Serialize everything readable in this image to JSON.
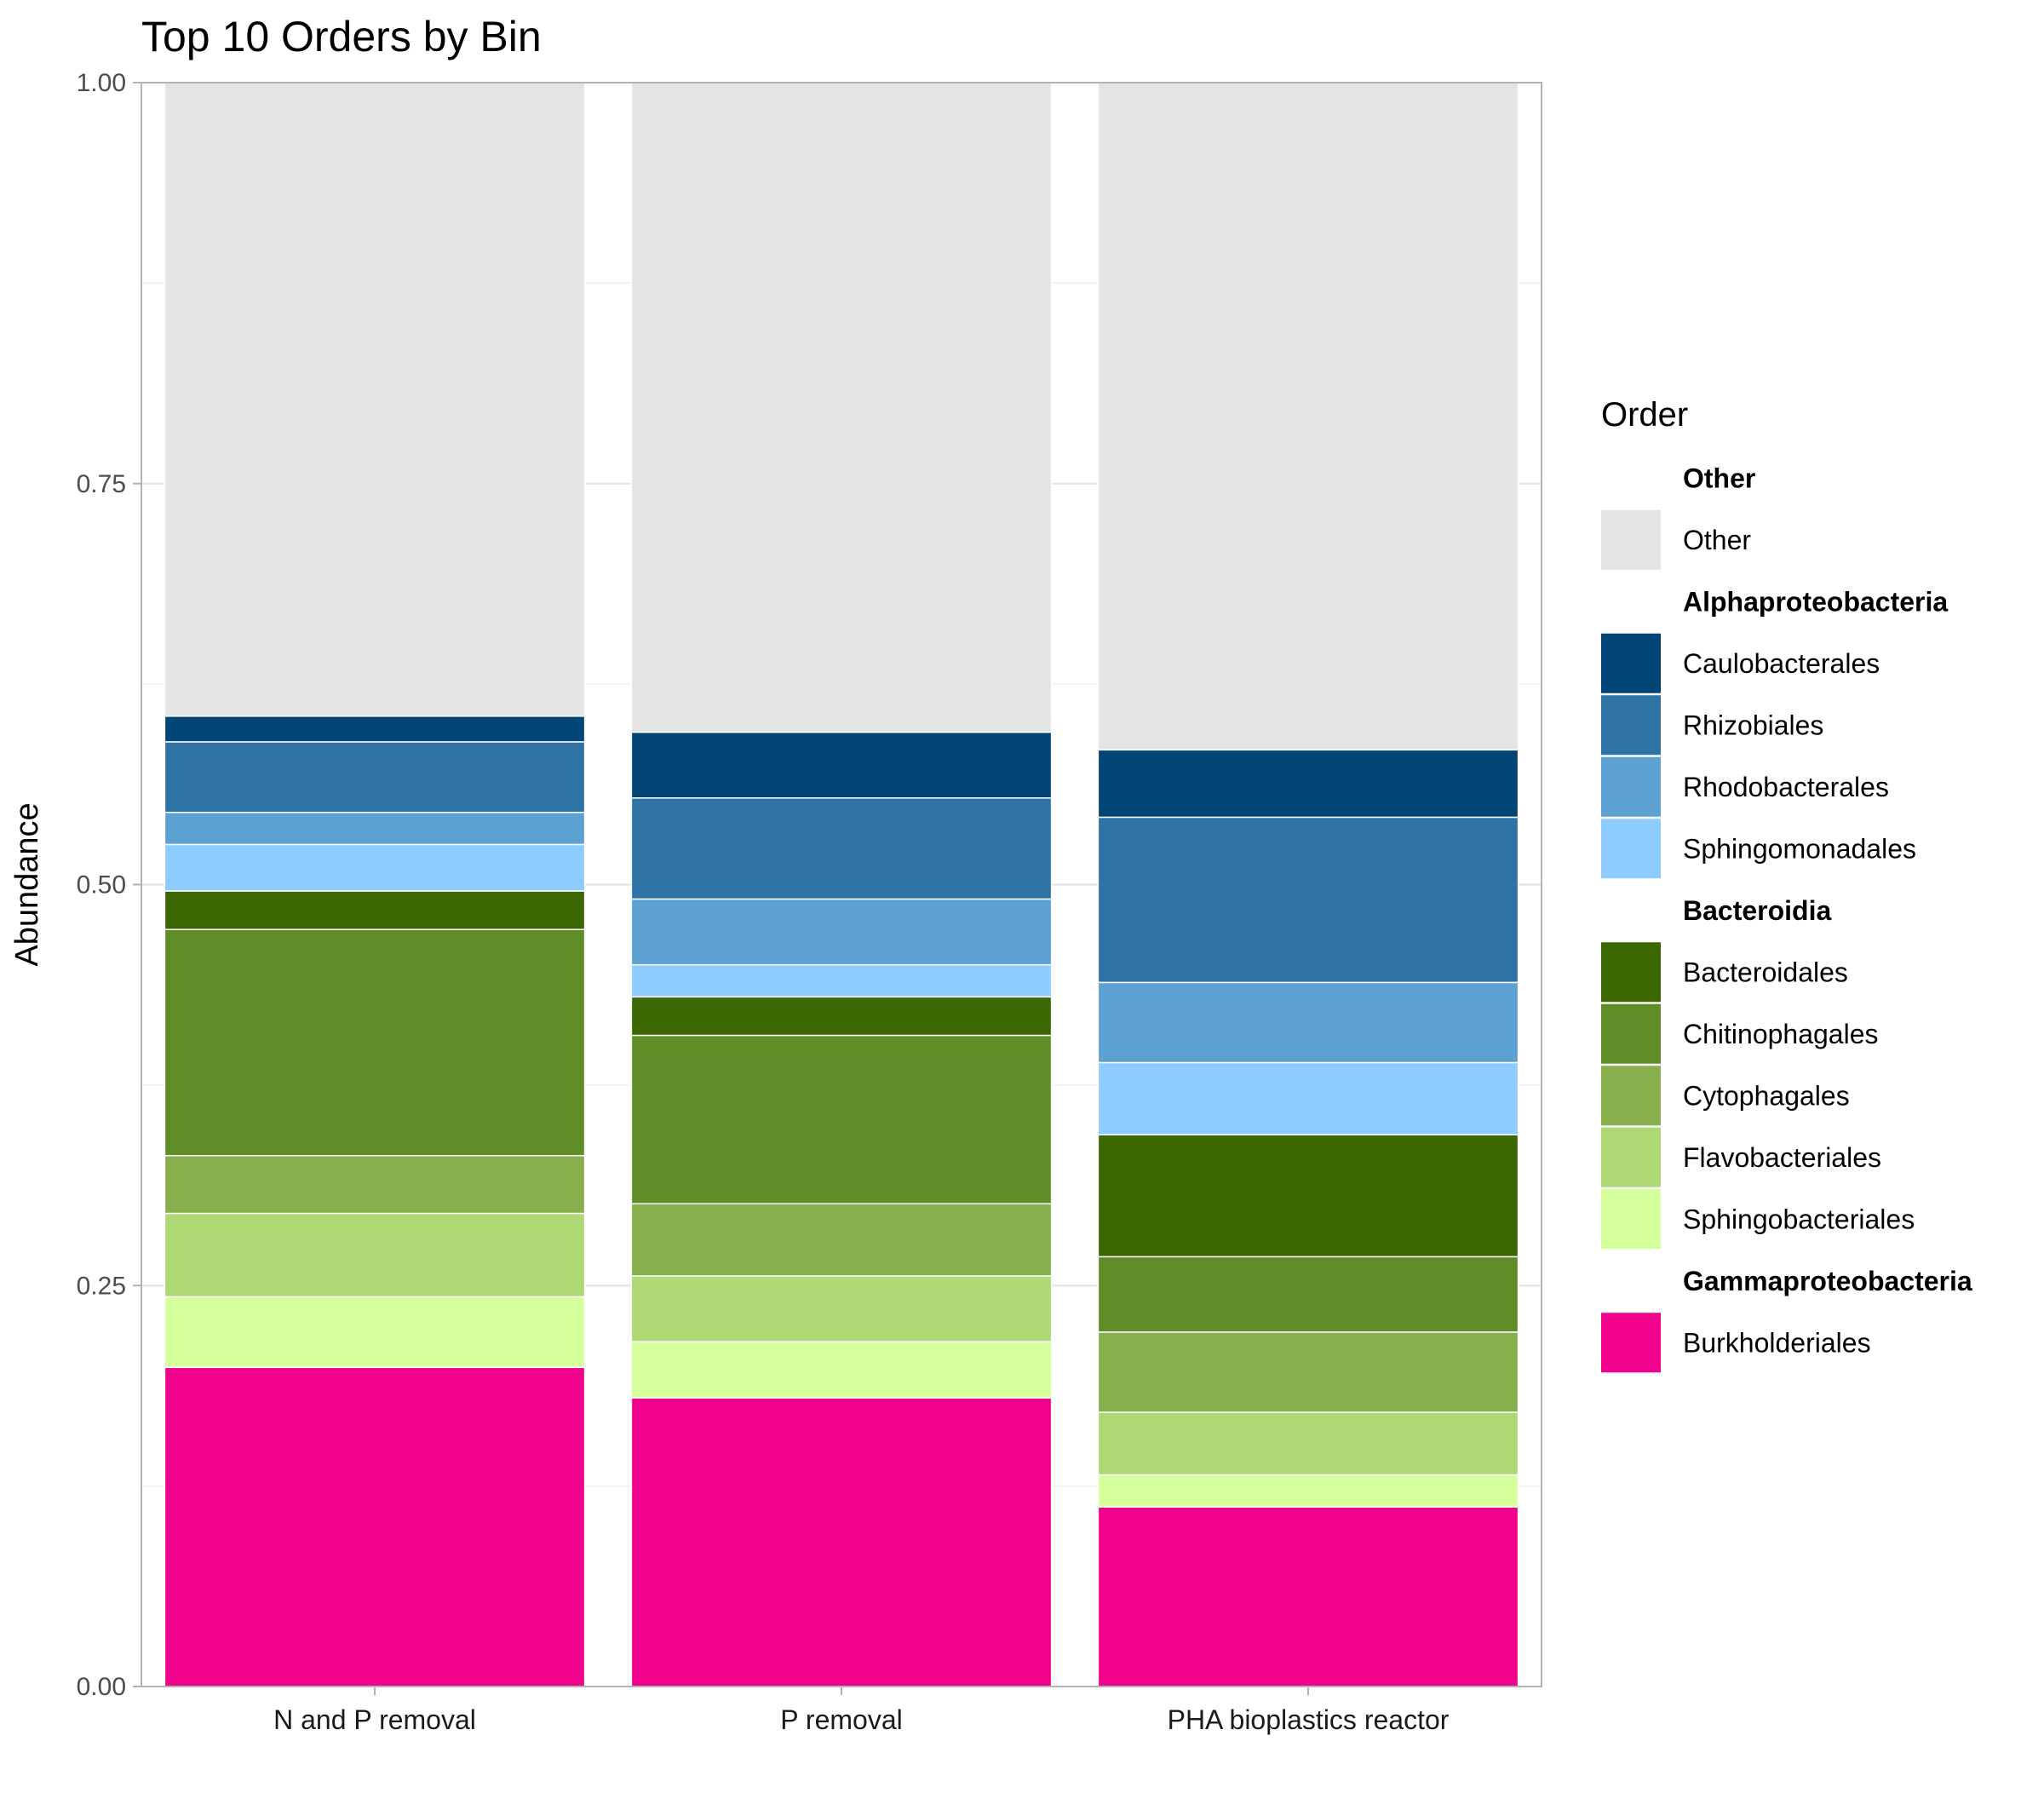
{
  "chart_data": {
    "type": "bar",
    "stacked": true,
    "title": "Top 10 Orders by Bin",
    "xlabel": "",
    "ylabel": "Abundance",
    "ylim": [
      0,
      1
    ],
    "yticks": [
      "0.00",
      "0.25",
      "0.50",
      "0.75",
      "1.00"
    ],
    "grid": true,
    "legend_position": "right",
    "legend_title": "Order",
    "categories": [
      "N and P removal",
      "P removal",
      "PHA bioplastics reactor"
    ],
    "series": [
      {
        "name": "Burkholderiales",
        "group": "Gammaproteobacteria",
        "color": "#f0028d",
        "values": [
          0.199,
          0.18,
          0.112
        ]
      },
      {
        "name": "Sphingobacteriales",
        "group": "Bacteroidia",
        "color": "#d5ff9a",
        "values": [
          0.044,
          0.035,
          0.02
        ]
      },
      {
        "name": "Flavobacteriales",
        "group": "Bacteroidia",
        "color": "#add873",
        "values": [
          0.052,
          0.041,
          0.039
        ]
      },
      {
        "name": "Cytophagales",
        "group": "Bacteroidia",
        "color": "#87b04c",
        "values": [
          0.036,
          0.045,
          0.05
        ]
      },
      {
        "name": "Chitinophagales",
        "group": "Bacteroidia",
        "color": "#618d28",
        "values": [
          0.141,
          0.105,
          0.047
        ]
      },
      {
        "name": "Bacteroidales",
        "group": "Bacteroidia",
        "color": "#3b6700",
        "values": [
          0.024,
          0.024,
          0.076
        ]
      },
      {
        "name": "Sphingomonadales",
        "group": "Alphaproteobacteria",
        "color": "#8ecbfe",
        "values": [
          0.029,
          0.02,
          0.045
        ]
      },
      {
        "name": "Rhodobacterales",
        "group": "Alphaproteobacteria",
        "color": "#5ca1d2",
        "values": [
          0.02,
          0.041,
          0.05
        ]
      },
      {
        "name": "Rhizobiales",
        "group": "Alphaproteobacteria",
        "color": "#2e73a4",
        "values": [
          0.044,
          0.063,
          0.103
        ]
      },
      {
        "name": "Caulobacterales",
        "group": "Alphaproteobacteria",
        "color": "#004576",
        "values": [
          0.016,
          0.041,
          0.042
        ]
      },
      {
        "name": "Other",
        "group": "Other",
        "color": "#e4e4e4",
        "values": [
          0.395,
          0.405,
          0.416
        ]
      }
    ],
    "legend_groups": [
      {
        "title": "Other",
        "items": [
          "Other"
        ]
      },
      {
        "title": "Alphaproteobacteria",
        "items": [
          "Caulobacterales",
          "Rhizobiales",
          "Rhodobacterales",
          "Sphingomonadales"
        ]
      },
      {
        "title": "Bacteroidia",
        "items": [
          "Bacteroidales",
          "Chitinophagales",
          "Cytophagales",
          "Flavobacteriales",
          "Sphingobacteriales"
        ]
      },
      {
        "title": "Gammaproteobacteria",
        "items": [
          "Burkholderiales"
        ]
      }
    ]
  }
}
